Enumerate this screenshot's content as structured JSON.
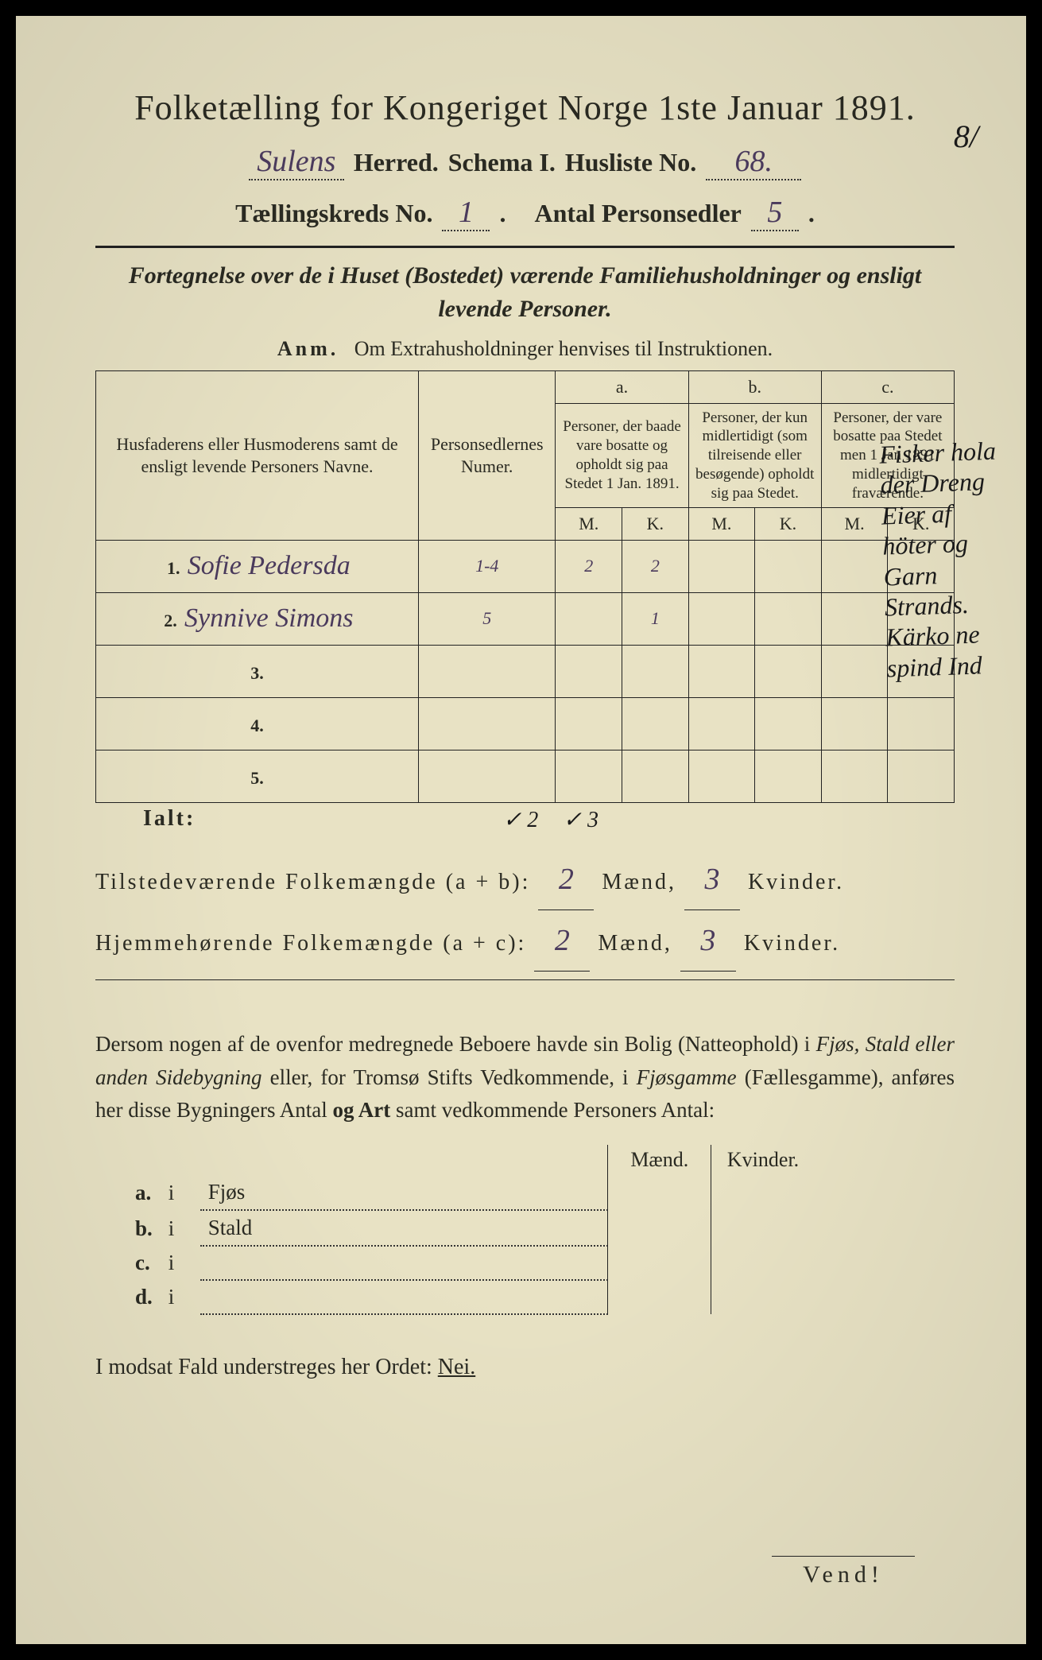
{
  "colors": {
    "paper": "#e8e2c4",
    "ink": "#2a2a22",
    "handwriting_purple": "#4a3a5c",
    "handwriting_black": "#1a1a1a",
    "border": "#222222"
  },
  "typography": {
    "title_fontsize": 44,
    "header_fontsize": 32,
    "body_fontsize": 27,
    "handwriting_fontsize": 38
  },
  "header": {
    "title": "Folketælling for Kongeriget Norge 1ste Januar 1891.",
    "herred_value": "Sulens",
    "herred_label": "Herred.",
    "schema_label": "Schema I.",
    "husliste_label": "Husliste No.",
    "husliste_value": "68.",
    "corner_number": "8/",
    "kreds_label": "Tællingskreds No.",
    "kreds_value": "1",
    "antal_label": "Antal Personsedler",
    "antal_value": "5"
  },
  "subtitle": "Fortegnelse over de i Huset (Bostedet) værende Familiehusholdninger og ensligt levende Personer.",
  "anm": {
    "label": "Anm.",
    "text": "Om Extrahusholdninger henvises til Instruktionen."
  },
  "table": {
    "col_name": "Husfaderens eller Husmoderens samt de ensligt levende Personers Navne.",
    "col_num": "Personsedlernes Numer.",
    "col_a_label": "a.",
    "col_a_text": "Personer, der baade vare bosatte og opholdt sig paa Stedet 1 Jan. 1891.",
    "col_b_label": "b.",
    "col_b_text": "Personer, der kun midlertidigt (som tilreisende eller besøgende) opholdt sig paa Stedet.",
    "col_c_label": "c.",
    "col_c_text": "Personer, der vare bosatte paa Stedet men 1 Jan 1891 midlertidigt fraværende.",
    "mk_m": "M.",
    "mk_k": "K.",
    "rows": [
      {
        "n": "1.",
        "name": "Sofie Pedersda",
        "num": "1-4",
        "am": "2",
        "ak": "2",
        "bm": "",
        "bk": "",
        "cm": "",
        "ck": ""
      },
      {
        "n": "2.",
        "name": "Synnive Simons",
        "num": "5",
        "am": "",
        "ak": "1",
        "bm": "",
        "bk": "",
        "cm": "",
        "ck": ""
      },
      {
        "n": "3.",
        "name": "",
        "num": "",
        "am": "",
        "ak": "",
        "bm": "",
        "bk": "",
        "cm": "",
        "ck": ""
      },
      {
        "n": "4.",
        "name": "",
        "num": "",
        "am": "",
        "ak": "",
        "bm": "",
        "bk": "",
        "cm": "",
        "ck": ""
      },
      {
        "n": "5.",
        "name": "",
        "num": "",
        "am": "",
        "ak": "",
        "bm": "",
        "bk": "",
        "cm": "",
        "ck": ""
      }
    ],
    "ialt_label": "Ialt:",
    "ialt_check_m": "✓ 2",
    "ialt_check_k": "✓ 3"
  },
  "totals": {
    "line1_label": "Tilstedeværende Folkemængde (a + b):",
    "line1_m": "2",
    "line1_k": "3",
    "line2_label": "Hjemmehørende Folkemængde (a + c):",
    "line2_m": "2",
    "line2_k": "3",
    "maend": "Mænd,",
    "kvinder": "Kvinder."
  },
  "paragraph": {
    "text_pre": "Dersom nogen af de ovenfor medregnede Beboere havde sin Bolig (Natteophold) i ",
    "em1": "Fjøs, Stald eller anden Sidebygning",
    "text_mid": " eller, for Tromsø Stifts Vedkommende, i ",
    "em2": "Fjøsgamme",
    "text_paren": " (Fællesgamme), anføres her disse Bygningers Antal ",
    "bold": "og Art",
    "text_end": " samt vedkommende Personers Antal:"
  },
  "small_table": {
    "heads": [
      "Mænd.",
      "Kvinder."
    ],
    "rows": [
      {
        "a": "a.",
        "b": "i",
        "c": "Fjøs"
      },
      {
        "a": "b.",
        "b": "i",
        "c": "Stald"
      },
      {
        "a": "c.",
        "b": "i",
        "c": ""
      },
      {
        "a": "d.",
        "b": "i",
        "c": ""
      }
    ]
  },
  "nei_line": {
    "text": "I modsat Fald understreges her Ordet: ",
    "nei": "Nei."
  },
  "vend": "Vend!",
  "margin_note": "Fisker hola der Dreng Eier af höter og Garn Strands. Kärko ne spind Ind"
}
